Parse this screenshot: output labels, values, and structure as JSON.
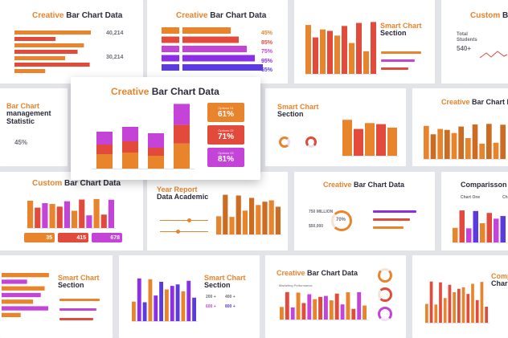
{
  "slides": {
    "s1": {
      "title_a": "Creative",
      "title_b": "Bar Chart Data",
      "value_top": "40,214",
      "value_bottom": "30,214"
    },
    "s2": {
      "title_a": "Creative",
      "title_b": "Bar Chart Data",
      "percents": [
        "45%",
        "85%",
        "75%",
        "95%",
        "65%"
      ]
    },
    "s3": {
      "title_a": "Smart Chart",
      "title_b": "Section"
    },
    "s4": {
      "title_a": "Custom",
      "title_b": "Ba",
      "label": "Total Students",
      "value": "540+"
    },
    "s5": {
      "title_a": "Bar Chart",
      "title_b": "management",
      "title_c": "Statistic",
      "stat": "45%"
    },
    "s6": {
      "title_a": "Creative",
      "title_b": "Bar Chart Data",
      "options": [
        {
          "label": "Options 01",
          "value": "61%"
        },
        {
          "label": "Options 02",
          "value": "71%"
        },
        {
          "label": "Options 03",
          "value": "81%"
        }
      ]
    },
    "s7": {
      "title_a": "Smart Chart",
      "title_b": "Section"
    },
    "s8": {
      "title_a": "Creative",
      "title_b": "Bar Chart D"
    },
    "s9": {
      "title_a": "Custom",
      "title_b": "Bar Chart Data",
      "stats": [
        "35",
        "415",
        "678"
      ]
    },
    "s10": {
      "title_a": "Year Report",
      "title_b": "Data Academic"
    },
    "s11": {
      "title_a": "Creative",
      "title_b": "Bar Chart Data",
      "amount_a": "750 MILLION",
      "amount_b": "$50,000",
      "donut": "70%"
    },
    "s12": {
      "title": "Comparisson",
      "col_a": "Chart One",
      "col_b": "Ch"
    },
    "s13": {
      "title_a": "Smart Chart",
      "title_b": "Section"
    },
    "s14": {
      "title_a": "Smart Chart",
      "title_b": "Section",
      "nums": [
        "200 +",
        "400 +",
        "600 +",
        "800 +"
      ]
    },
    "s15": {
      "title_a": "Creative",
      "title_b": "Bar Chart Data",
      "subtitle": "Marketing Performance"
    },
    "s16": {
      "title_a": "Comp",
      "title_b": "Char"
    }
  }
}
